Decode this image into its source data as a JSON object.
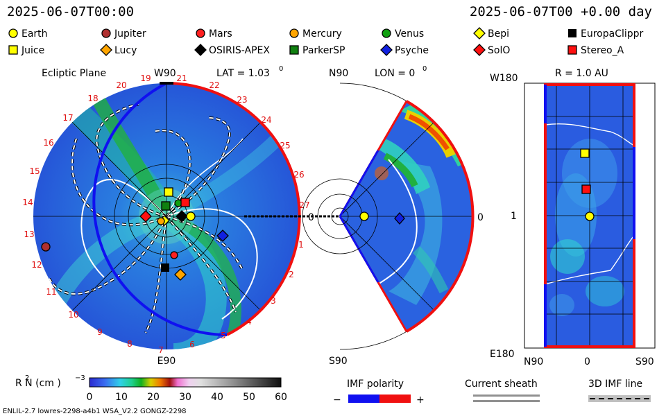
{
  "header": {
    "left_datetime": "2025-06-07T00:00",
    "right_datetime": "2025-06-07T00 +0.00 day"
  },
  "legend": {
    "items": [
      {
        "label": "Earth",
        "shape": "circle",
        "color": "#ffff00"
      },
      {
        "label": "Jupiter",
        "shape": "circle",
        "color": "#b03030"
      },
      {
        "label": "Mars",
        "shape": "circle",
        "color": "#ff2020"
      },
      {
        "label": "Mercury",
        "shape": "circle",
        "color": "#ffa500"
      },
      {
        "label": "Venus",
        "shape": "circle",
        "color": "#10a010"
      },
      {
        "label": "Bepi",
        "shape": "diamond",
        "color": "#ffff00"
      },
      {
        "label": "EuropaClippr",
        "shape": "square",
        "color": "#000000"
      },
      {
        "label": "Juice",
        "shape": "square",
        "color": "#ffff00"
      },
      {
        "label": "Lucy",
        "shape": "diamond",
        "color": "#ffa500"
      },
      {
        "label": "OSIRIS-APEX",
        "shape": "diamond",
        "color": "#000000"
      },
      {
        "label": "ParkerSP",
        "shape": "square",
        "color": "#108010"
      },
      {
        "label": "Psyche",
        "shape": "diamond",
        "color": "#1020e0"
      },
      {
        "label": "SolO",
        "shape": "diamond",
        "color": "#ff1010"
      },
      {
        "label": "Stereo_A",
        "shape": "square",
        "color": "#ff1010"
      }
    ]
  },
  "ecliptic": {
    "title": "Ecliptic Plane",
    "top_label": "W90",
    "bottom_label": "E90",
    "lat_label": "LAT = 1.03",
    "lat_unit": "0",
    "axis_label": "0",
    "tick_numbers": [
      "19",
      "20",
      "21",
      "22",
      "23",
      "24",
      "25",
      "26",
      "27",
      "1",
      "2",
      "3",
      "4",
      "5",
      "6",
      "7",
      "8",
      "9",
      "10",
      "11",
      "12",
      "13",
      "14",
      "15",
      "16",
      "17",
      "18"
    ]
  },
  "meridional": {
    "top_label": "N90",
    "bottom_label": "S90",
    "lon_label": "LON = 0",
    "lon_unit": "0",
    "right_label": "0"
  },
  "map": {
    "radius_label": "R = 1.0 AU",
    "top_left_label": "W180",
    "bottom_left_label": "E180",
    "mid_label": "1",
    "xaxis_labels": [
      "N90",
      "0",
      "S90"
    ]
  },
  "colorbar": {
    "label": "R  N (cm  )",
    "ticks": [
      "0",
      "10",
      "20",
      "30",
      "40",
      "50",
      "60"
    ],
    "range": [
      0,
      60
    ]
  },
  "bottom_legends": {
    "imf_title": "IMF polarity",
    "imf_minus": "−",
    "imf_plus": "+",
    "current_sheath": "Current sheath",
    "imf_line": "3D IMF line"
  },
  "footer": {
    "model_text": "ENLIL-2.7 lowres-2298-a4b1 WSA_V2.2 GONGZ-2298"
  },
  "colors": {
    "accent_red": "#e01010",
    "imf_negative": "#1010f0",
    "imf_positive": "#f01010"
  },
  "chart_data": [
    {
      "type": "heatmap",
      "title": "Ecliptic Plane",
      "quantity": "R  N (cm  )",
      "value_range": [
        0,
        60
      ]
    },
    {
      "type": "heatmap",
      "title": "LON = 0",
      "quantity": "R  N (cm  )",
      "value_range": [
        0,
        60
      ]
    },
    {
      "type": "heatmap",
      "title": "R = 1.0 AU",
      "quantity": "R  N (cm  )",
      "value_range": [
        0,
        60
      ]
    }
  ]
}
